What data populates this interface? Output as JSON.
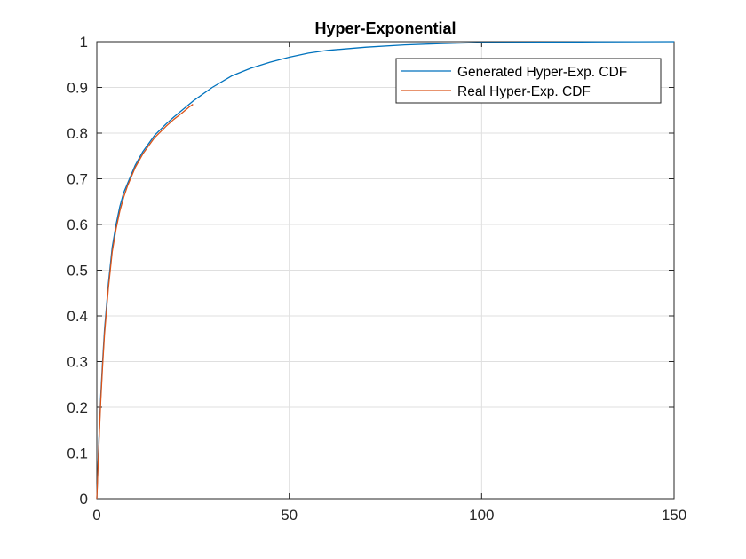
{
  "chart_data": {
    "type": "line",
    "title": "Hyper-Exponential",
    "xlabel": "",
    "ylabel": "",
    "xlim": [
      0,
      150
    ],
    "ylim": [
      0,
      1
    ],
    "grid": true,
    "legend_position": "top-right",
    "x_ticks": [
      0,
      50,
      100,
      150
    ],
    "x_tick_labels": [
      "0",
      "50",
      "100",
      "150"
    ],
    "y_ticks": [
      0,
      0.1,
      0.2,
      0.3,
      0.4,
      0.5,
      0.6,
      0.7,
      0.8,
      0.9,
      1
    ],
    "y_tick_labels": [
      "0",
      "0.1",
      "0.2",
      "0.3",
      "0.4",
      "0.5",
      "0.6",
      "0.7",
      "0.8",
      "0.9",
      "1"
    ],
    "series": [
      {
        "name": "Generated Hyper-Exp. CDF",
        "color": "#0072BD",
        "x": [
          0,
          0.5,
          1,
          1.5,
          2,
          3,
          4,
          5,
          6,
          7,
          8,
          10,
          12,
          15,
          18,
          20,
          25,
          30,
          35,
          40,
          45,
          50,
          55,
          60,
          70,
          80,
          90,
          100,
          110,
          120,
          130,
          140,
          150
        ],
        "y": [
          0,
          0.12,
          0.22,
          0.3,
          0.37,
          0.47,
          0.55,
          0.6,
          0.64,
          0.67,
          0.69,
          0.73,
          0.76,
          0.795,
          0.82,
          0.835,
          0.87,
          0.9,
          0.925,
          0.942,
          0.955,
          0.966,
          0.975,
          0.981,
          0.988,
          0.993,
          0.996,
          0.998,
          0.9985,
          0.999,
          0.9995,
          0.9998,
          1
        ]
      },
      {
        "name": "Real Hyper-Exp. CDF",
        "color": "#D95319",
        "x": [
          0,
          0.5,
          1,
          1.5,
          2,
          3,
          4,
          5,
          6,
          7,
          8,
          10,
          12,
          15,
          18,
          20,
          22,
          24,
          25
        ],
        "y": [
          0,
          0.11,
          0.21,
          0.29,
          0.36,
          0.46,
          0.54,
          0.59,
          0.63,
          0.66,
          0.685,
          0.725,
          0.755,
          0.79,
          0.815,
          0.83,
          0.843,
          0.857,
          0.863
        ]
      }
    ]
  }
}
